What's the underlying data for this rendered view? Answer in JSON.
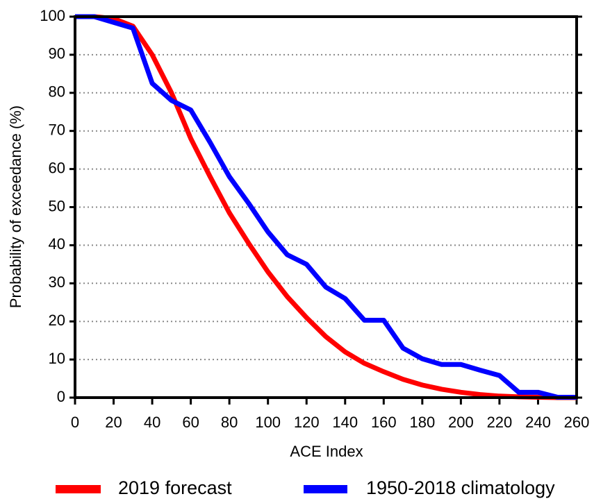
{
  "chart_data": {
    "type": "line",
    "x_label": "ACE Index",
    "y_label": "Probability of exceedance (%)",
    "x": [
      0,
      10,
      20,
      30,
      40,
      50,
      60,
      70,
      80,
      90,
      100,
      110,
      120,
      130,
      140,
      150,
      160,
      170,
      180,
      190,
      200,
      210,
      220,
      230,
      240,
      250,
      260
    ],
    "series": [
      {
        "name": "2019 forecast",
        "color": "#ff0000",
        "values": [
          100,
          100,
          99.5,
          97.5,
          90,
          80,
          68,
          58,
          48.5,
          40.5,
          33,
          26.5,
          21,
          16,
          12,
          9,
          6.8,
          4.8,
          3.3,
          2.2,
          1.4,
          0.8,
          0.4,
          0.2,
          0.1,
          0,
          0
        ]
      },
      {
        "name": "1950-2018 climatology",
        "color": "#0000ff",
        "values": [
          100,
          100,
          98.5,
          97,
          82.5,
          78,
          75.5,
          67,
          58,
          51,
          43.5,
          37.5,
          35,
          29,
          26,
          20.3,
          20.3,
          13,
          10.2,
          8.7,
          8.7,
          7.2,
          5.8,
          1.4,
          1.4,
          0.1,
          0.1
        ]
      }
    ],
    "xlim": [
      0,
      260
    ],
    "xticks": [
      0,
      20,
      40,
      60,
      80,
      100,
      120,
      140,
      160,
      180,
      200,
      220,
      240,
      260
    ],
    "ylim": [
      0,
      100
    ],
    "yticks": [
      0,
      10,
      20,
      30,
      40,
      50,
      60,
      70,
      80,
      90,
      100
    ],
    "grid": true,
    "legend": "bottom"
  }
}
